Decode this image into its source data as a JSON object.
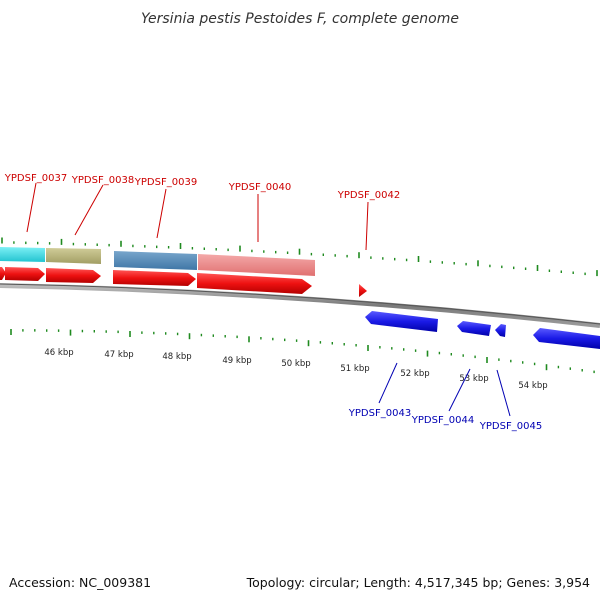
{
  "title": "Yersinia pestis Pestoides F, complete genome",
  "footer": {
    "accession": "Accession: NC_009381",
    "summary": "Topology: circular; Length: 4,517,345 bp; Genes: 3,954"
  },
  "colors": {
    "forward_gene": "#ee1111",
    "reverse_gene": "#1a1ae6",
    "backbone": "#8a8a8a",
    "ticks": "#1f8a1f",
    "forward_label": "#cc0000",
    "reverse_label": "#0000b3"
  },
  "scale_labels": [
    "46 kbp",
    "47 kbp",
    "48 kbp",
    "49 kbp",
    "50 kbp",
    "51 kbp",
    "52 kbp",
    "53 kbp",
    "54 kbp"
  ],
  "forward_genes": [
    {
      "name": "YPDSF_0037"
    },
    {
      "name": "YPDSF_0038"
    },
    {
      "name": "YPDSF_0039"
    },
    {
      "name": "YPDSF_0040"
    },
    {
      "name": "YPDSF_0042"
    }
  ],
  "reverse_genes": [
    {
      "name": "YPDSF_0043"
    },
    {
      "name": "YPDSF_0044"
    },
    {
      "name": "YPDSF_0045"
    }
  ],
  "feature_band": [
    {
      "color": "#33d6e0"
    },
    {
      "color": "#b7b37a"
    },
    {
      "color": "#4f86b5"
    },
    {
      "color": "#ea8585"
    }
  ]
}
